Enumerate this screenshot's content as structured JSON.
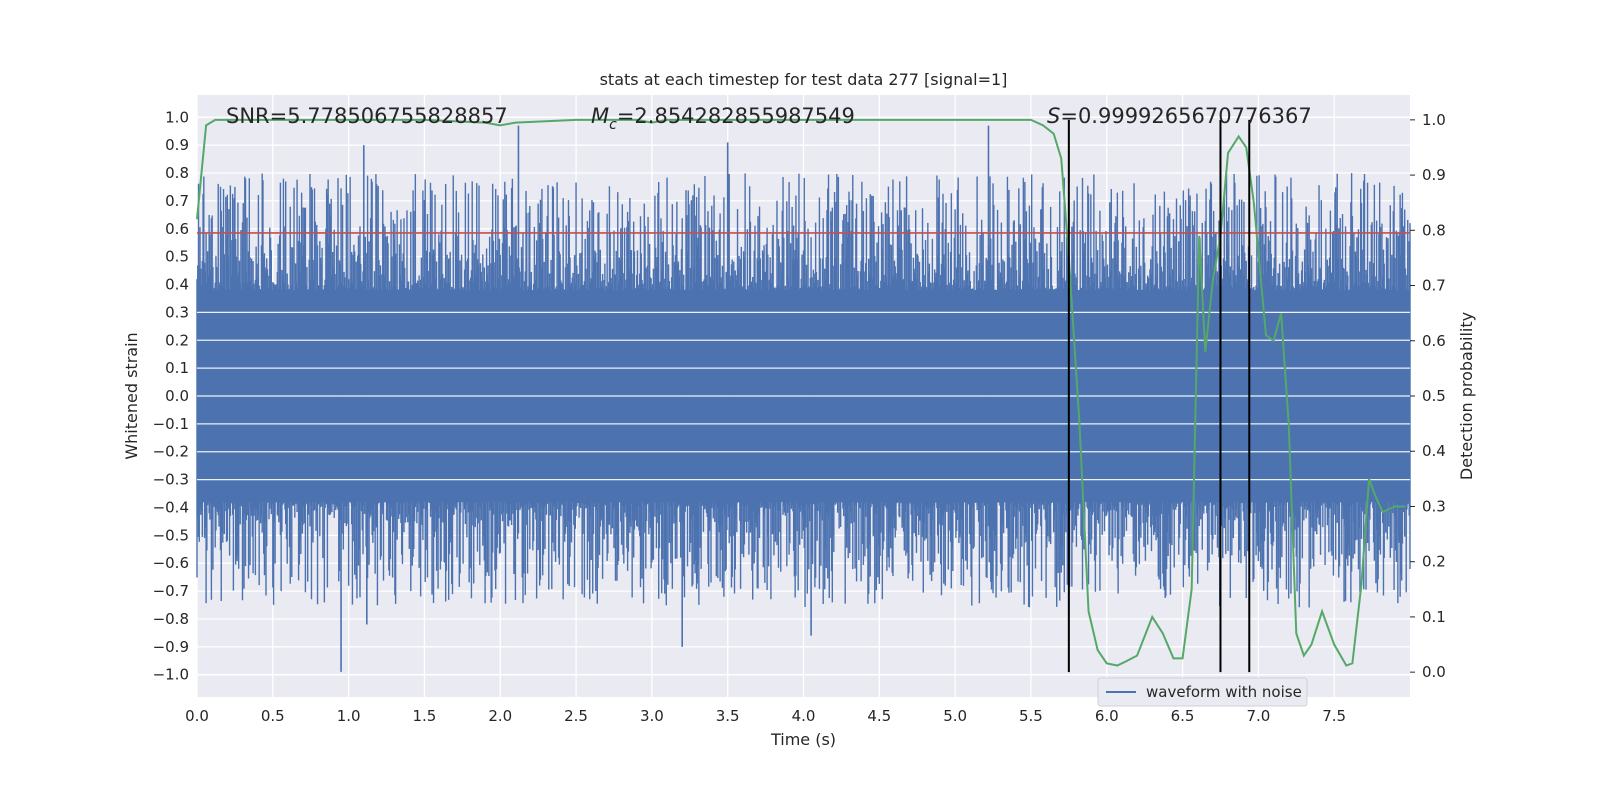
{
  "chart_data": {
    "type": "line",
    "title": "stats at each timestep for test data 277 [signal=1]",
    "xlabel": "Time (s)",
    "ylabel": "Whitened strain",
    "y2label": "Detection probability",
    "xlim": [
      0.0,
      8.0
    ],
    "ylim": [
      -1.08,
      1.08
    ],
    "y2lim": [
      -0.045,
      1.045
    ],
    "xticks": [
      "0.0",
      "0.5",
      "1.0",
      "1.5",
      "2.0",
      "2.5",
      "3.0",
      "3.5",
      "4.0",
      "4.5",
      "5.0",
      "5.5",
      "6.0",
      "6.5",
      "7.0",
      "7.5"
    ],
    "yticks": [
      "1.0",
      "0.9",
      "0.8",
      "0.7",
      "0.6",
      "0.5",
      "0.4",
      "0.3",
      "0.2",
      "0.1",
      "0.0",
      "−0.1",
      "−0.2",
      "−0.3",
      "−0.4",
      "−0.5",
      "−0.6",
      "−0.7",
      "−0.8",
      "−0.9",
      "−1.0"
    ],
    "y2ticks": [
      "1.0",
      "0.9",
      "0.8",
      "0.7",
      "0.6",
      "0.5",
      "0.4",
      "0.3",
      "0.2",
      "0.1",
      "0.0"
    ],
    "annotations": {
      "snr": "SNR=5.778506755828857",
      "mc_symbol": "M",
      "mc_subscript": "c",
      "mc_value": "=2.854282855987549",
      "s_symbol": "S",
      "s_value": "=0.9999265670776367"
    },
    "threshold_line": {
      "y": 0.585,
      "color": "#c44e52"
    },
    "vertical_markers": [
      5.75,
      6.75,
      6.94
    ],
    "series": [
      {
        "name": "waveform with noise",
        "color": "#4c72b0",
        "axis": "left",
        "noise_band": 0.38,
        "peaks": [
          [
            0.95,
            -0.99
          ],
          [
            1.1,
            0.9
          ],
          [
            2.12,
            0.97
          ],
          [
            3.5,
            0.91
          ],
          [
            5.22,
            0.97
          ],
          [
            3.2,
            -0.9
          ],
          [
            4.05,
            -0.86
          ],
          [
            1.12,
            -0.82
          ]
        ]
      },
      {
        "name": "detection probability",
        "color": "#55a868",
        "axis": "right",
        "x": [
          0.0,
          0.06,
          0.12,
          0.5,
          1.0,
          1.5,
          1.9,
          2.0,
          2.1,
          2.5,
          2.9,
          3.0,
          3.1,
          3.5,
          4.0,
          4.5,
          5.0,
          5.25,
          5.5,
          5.58,
          5.65,
          5.7,
          5.75,
          5.82,
          5.88,
          5.94,
          6.0,
          6.07,
          6.13,
          6.2,
          6.3,
          6.37,
          6.44,
          6.5,
          6.56,
          6.61,
          6.65,
          6.7,
          6.75,
          6.8,
          6.87,
          6.92,
          6.97,
          7.05,
          7.1,
          7.15,
          7.2,
          7.25,
          7.3,
          7.35,
          7.42,
          7.5,
          7.58,
          7.62,
          7.68,
          7.73,
          7.77,
          7.82,
          7.9,
          7.97
        ],
        "y": [
          0.82,
          0.99,
          1.0,
          1.0,
          1.0,
          1.0,
          0.995,
          0.99,
          0.995,
          1.0,
          1.0,
          0.995,
          1.0,
          1.0,
          1.0,
          1.0,
          1.0,
          1.0,
          1.0,
          0.99,
          0.975,
          0.93,
          0.75,
          0.45,
          0.11,
          0.04,
          0.016,
          0.012,
          0.02,
          0.03,
          0.1,
          0.07,
          0.025,
          0.025,
          0.15,
          0.79,
          0.58,
          0.71,
          0.79,
          0.94,
          0.97,
          0.95,
          0.85,
          0.61,
          0.6,
          0.65,
          0.45,
          0.07,
          0.03,
          0.05,
          0.11,
          0.05,
          0.012,
          0.016,
          0.16,
          0.35,
          0.32,
          0.29,
          0.3,
          0.3
        ]
      }
    ],
    "legend": {
      "label": "waveform with noise",
      "location": "lower-right"
    },
    "colors": {
      "background": "#eaeaf2",
      "grid": "#ffffff",
      "markers": "#000000"
    }
  }
}
